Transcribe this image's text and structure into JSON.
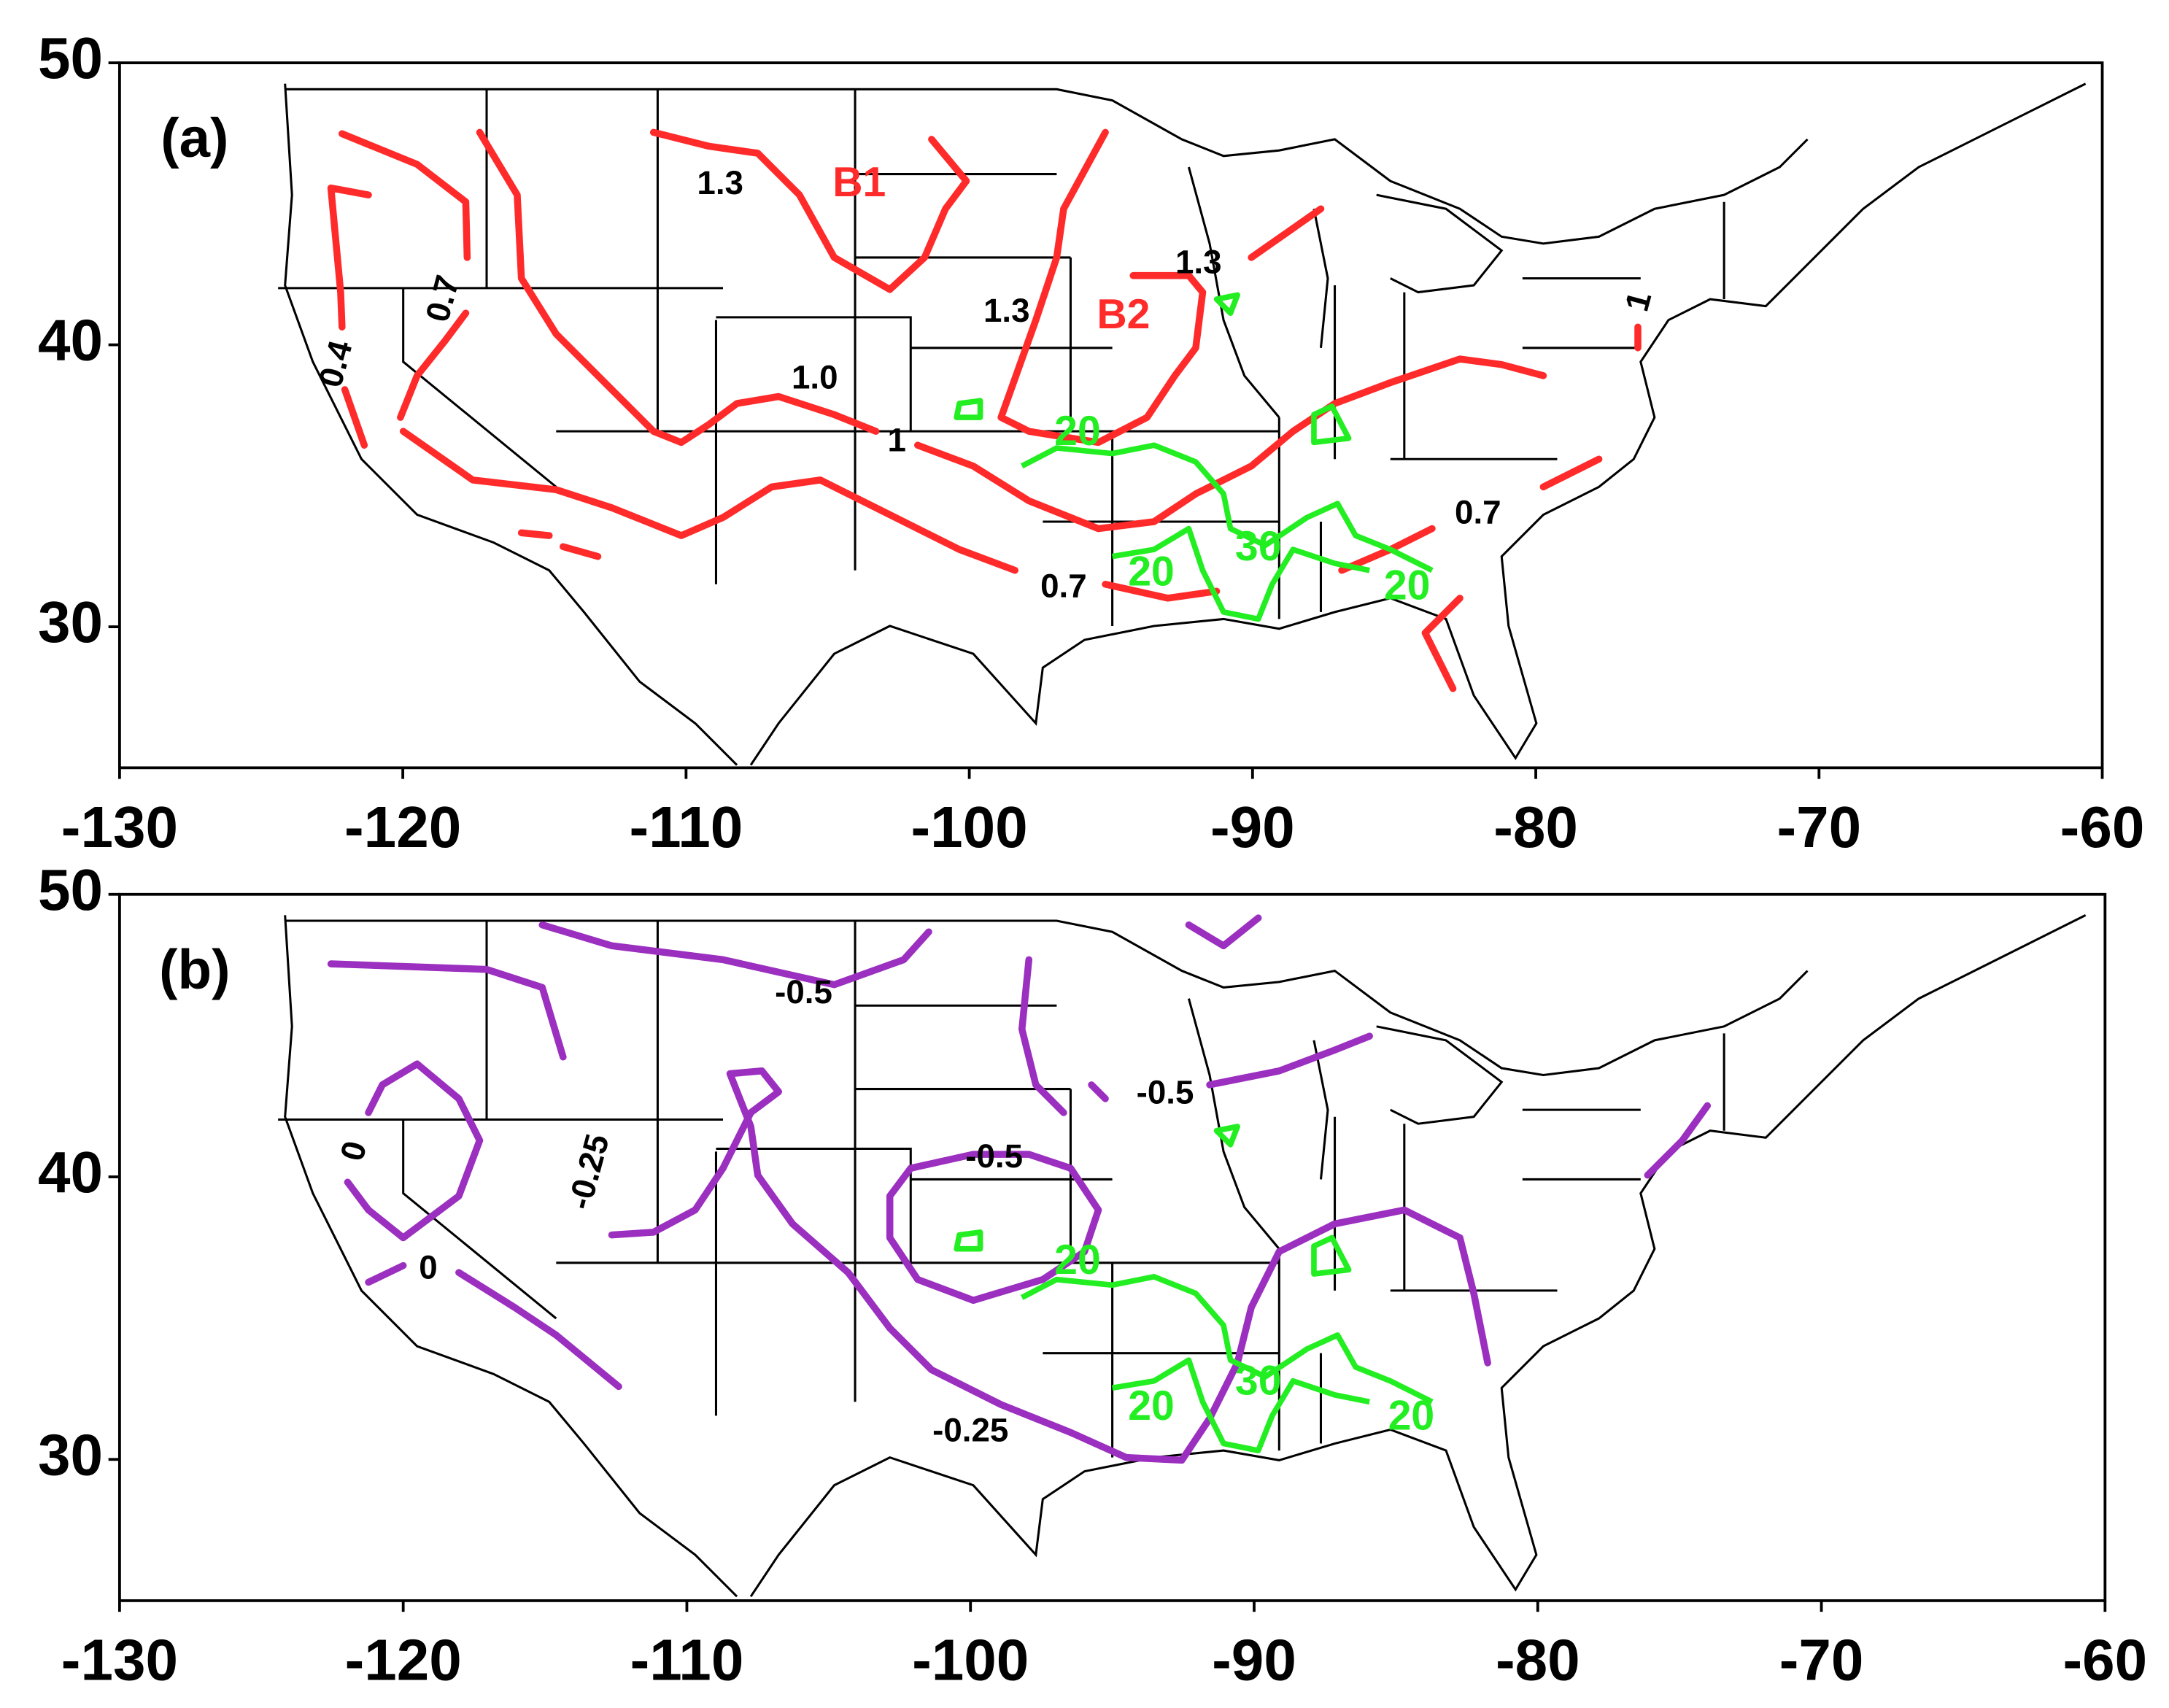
{
  "panels": [
    {
      "label": "(a)",
      "xlim": [
        -130,
        -60
      ],
      "ylim": [
        25,
        50
      ],
      "xticks": [
        -130,
        -120,
        -110,
        -100,
        -90,
        -80,
        -70,
        -60
      ],
      "yticks": [
        30,
        40,
        50
      ],
      "contour_labels": [
        {
          "text": "1.3",
          "color": "#000000"
        },
        {
          "text": "B1",
          "color": "#ff2a2a"
        },
        {
          "text": "1.3",
          "color": "#000000"
        },
        {
          "text": "1.3",
          "color": "#000000"
        },
        {
          "text": "B2",
          "color": "#ff2a2a"
        },
        {
          "text": "1.0",
          "color": "#000000"
        },
        {
          "text": "0.7",
          "color": "#000000"
        },
        {
          "text": "0.4",
          "color": "#000000"
        },
        {
          "text": "0.7",
          "color": "#000000"
        },
        {
          "text": "0.7",
          "color": "#000000"
        },
        {
          "text": "1",
          "color": "#000000"
        },
        {
          "text": "1",
          "color": "#000000"
        },
        {
          "text": "20",
          "color": "#22ee22"
        },
        {
          "text": "30",
          "color": "#22ee22"
        },
        {
          "text": "20",
          "color": "#22ee22"
        },
        {
          "text": "20",
          "color": "#22ee22"
        }
      ]
    },
    {
      "label": "(b)",
      "xlim": [
        -130,
        -60
      ],
      "ylim": [
        25,
        50
      ],
      "xticks": [
        -130,
        -120,
        -110,
        -100,
        -90,
        -80,
        -70,
        -60
      ],
      "yticks": [
        30,
        40,
        50
      ],
      "contour_labels": [
        {
          "text": "-0.5",
          "color": "#000000"
        },
        {
          "text": "-0.5",
          "color": "#000000"
        },
        {
          "text": "-0.5",
          "color": "#000000"
        },
        {
          "text": "-0.25",
          "color": "#000000"
        },
        {
          "text": "0",
          "color": "#000000"
        },
        {
          "text": "-0.25",
          "color": "#000000"
        },
        {
          "text": "0",
          "color": "#000000"
        },
        {
          "text": "20",
          "color": "#22ee22"
        },
        {
          "text": "30",
          "color": "#22ee22"
        },
        {
          "text": "20",
          "color": "#22ee22"
        },
        {
          "text": "20",
          "color": "#22ee22"
        }
      ]
    }
  ]
}
